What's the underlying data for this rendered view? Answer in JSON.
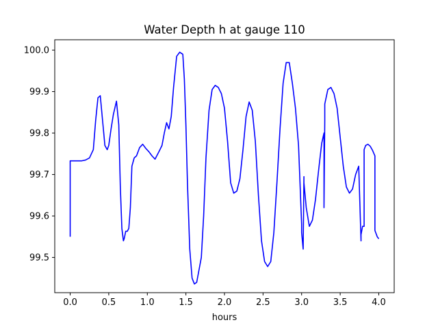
{
  "chart_data": {
    "type": "line",
    "title": "Water Depth h at gauge 110",
    "xlabel": "hours",
    "ylabel": "",
    "xlim": [
      -0.2,
      4.2
    ],
    "ylim": [
      99.415,
      100.025
    ],
    "xticks": [
      0.0,
      0.5,
      1.0,
      1.5,
      2.0,
      2.5,
      3.0,
      3.5,
      4.0
    ],
    "xtick_labels": [
      "0.0",
      "0.5",
      "1.0",
      "1.5",
      "2.0",
      "2.5",
      "3.0",
      "3.5",
      "4.0"
    ],
    "yticks": [
      99.5,
      99.6,
      99.7,
      99.8,
      99.9,
      100.0
    ],
    "ytick_labels": [
      "99.5",
      "99.6",
      "99.7",
      "99.8",
      "99.9",
      "100.0"
    ],
    "grid": false,
    "series": [
      {
        "color": "#0000ff",
        "x": [
          0.0,
          0.0,
          0.05,
          0.1,
          0.15,
          0.2,
          0.25,
          0.3,
          0.33,
          0.36,
          0.39,
          0.42,
          0.45,
          0.48,
          0.5,
          0.53,
          0.56,
          0.6,
          0.63,
          0.65,
          0.67,
          0.69,
          0.7,
          0.72,
          0.74,
          0.76,
          0.78,
          0.8,
          0.83,
          0.86,
          0.9,
          0.94,
          0.98,
          1.02,
          1.06,
          1.1,
          1.15,
          1.19,
          1.22,
          1.25,
          1.28,
          1.31,
          1.34,
          1.38,
          1.42,
          1.46,
          1.48,
          1.5,
          1.52,
          1.55,
          1.58,
          1.61,
          1.64,
          1.67,
          1.7,
          1.73,
          1.76,
          1.8,
          1.84,
          1.88,
          1.92,
          1.96,
          2.0,
          2.04,
          2.08,
          2.12,
          2.16,
          2.2,
          2.24,
          2.28,
          2.32,
          2.36,
          2.4,
          2.44,
          2.48,
          2.52,
          2.56,
          2.6,
          2.64,
          2.68,
          2.72,
          2.76,
          2.8,
          2.84,
          2.88,
          2.92,
          2.96,
          3.0,
          3.0,
          3.02,
          3.03,
          3.03,
          3.06,
          3.1,
          3.14,
          3.18,
          3.22,
          3.26,
          3.29,
          3.29,
          3.3,
          3.3,
          3.34,
          3.38,
          3.42,
          3.46,
          3.5,
          3.54,
          3.58,
          3.62,
          3.66,
          3.7,
          3.74,
          3.77,
          3.77,
          3.79,
          3.81,
          3.81,
          3.83,
          3.86,
          3.89,
          3.92,
          3.95,
          3.95,
          3.98,
          4.0
        ],
        "y": [
          99.55,
          99.733,
          99.733,
          99.733,
          99.733,
          99.735,
          99.74,
          99.76,
          99.83,
          99.885,
          99.89,
          99.83,
          99.77,
          99.76,
          99.77,
          99.81,
          99.845,
          99.877,
          99.82,
          99.67,
          99.57,
          99.54,
          99.545,
          99.563,
          99.563,
          99.57,
          99.62,
          99.72,
          99.74,
          99.745,
          99.765,
          99.773,
          99.763,
          99.755,
          99.745,
          99.737,
          99.755,
          99.77,
          99.8,
          99.825,
          99.81,
          99.84,
          99.91,
          99.985,
          99.995,
          99.99,
          99.93,
          99.82,
          99.68,
          99.52,
          99.45,
          99.436,
          99.44,
          99.47,
          99.5,
          99.6,
          99.74,
          99.855,
          99.905,
          99.915,
          99.91,
          99.895,
          99.86,
          99.78,
          99.68,
          99.655,
          99.66,
          99.69,
          99.76,
          99.84,
          99.875,
          99.855,
          99.78,
          99.65,
          99.54,
          99.49,
          99.478,
          99.49,
          99.56,
          99.68,
          99.81,
          99.92,
          99.97,
          99.97,
          99.92,
          99.86,
          99.77,
          99.58,
          99.56,
          99.52,
          99.695,
          99.68,
          99.62,
          99.575,
          99.59,
          99.64,
          99.71,
          99.775,
          99.8,
          99.62,
          99.83,
          99.87,
          99.905,
          99.91,
          99.895,
          99.86,
          99.79,
          99.72,
          99.67,
          99.655,
          99.665,
          99.7,
          99.72,
          99.54,
          99.555,
          99.575,
          99.575,
          99.76,
          99.77,
          99.773,
          99.768,
          99.758,
          99.745,
          99.565,
          99.55,
          99.545
        ]
      }
    ]
  }
}
